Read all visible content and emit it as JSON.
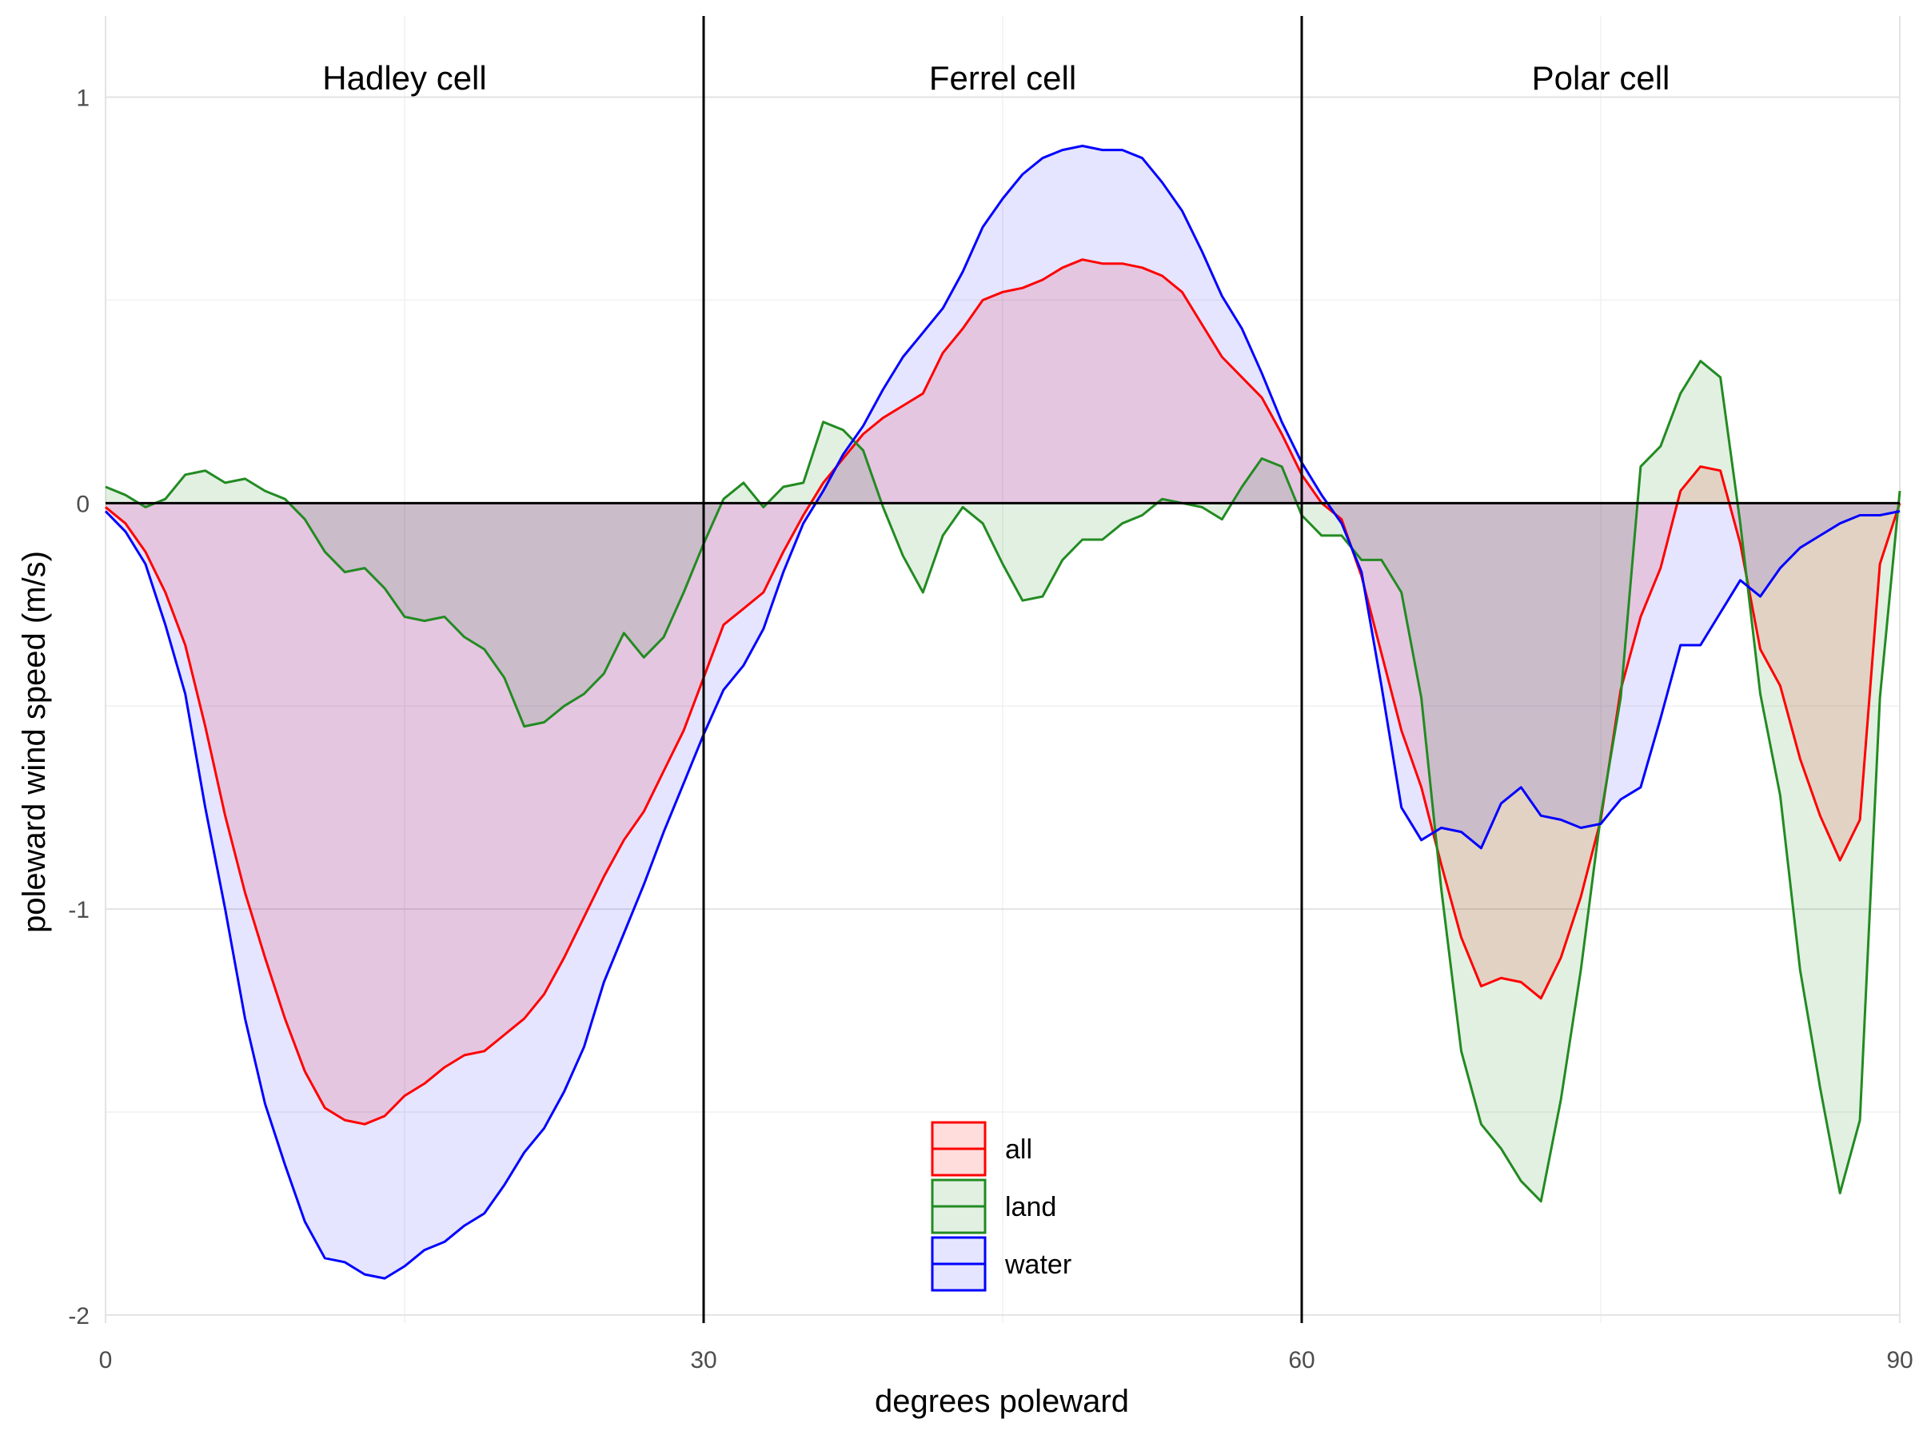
{
  "chart_data": {
    "type": "area",
    "xlabel": "degrees poleward",
    "ylabel": "poleward wind speed (m/s)",
    "xlim": [
      0,
      90
    ],
    "ylim": [
      -2.02,
      1.2
    ],
    "x_ticks": [
      0,
      30,
      60,
      90
    ],
    "x_tick_labels": [
      "0",
      "30",
      "60",
      "90"
    ],
    "y_ticks": [
      -2,
      -1,
      0,
      1
    ],
    "y_tick_labels": [
      "-2",
      "-1",
      "0",
      "1"
    ],
    "y_minor_ticks": [
      -1.5,
      -0.5,
      0.5
    ],
    "x_minor_ticks": [
      15,
      45,
      75
    ],
    "grid": true,
    "legend_position": "bottom-center",
    "reference_lines": {
      "vertical": [
        30,
        60
      ],
      "horizontal": [
        0
      ]
    },
    "regions": [
      {
        "label": "Hadley cell",
        "x_center": 15
      },
      {
        "label": "Ferrel cell",
        "x_center": 45
      },
      {
        "label": "Polar cell",
        "x_center": 75
      }
    ],
    "series": [
      {
        "name": "all",
        "line_color": "#ff0000",
        "fill_color": "#ff000022",
        "points": [
          [
            0,
            -0.01
          ],
          [
            1,
            -0.05
          ],
          [
            2,
            -0.12
          ],
          [
            3,
            -0.22
          ],
          [
            4,
            -0.35
          ],
          [
            5,
            -0.55
          ],
          [
            6,
            -0.77
          ],
          [
            7,
            -0.96
          ],
          [
            8,
            -1.12
          ],
          [
            9,
            -1.27
          ],
          [
            10,
            -1.4
          ],
          [
            11,
            -1.49
          ],
          [
            12,
            -1.52
          ],
          [
            13,
            -1.53
          ],
          [
            14,
            -1.51
          ],
          [
            15,
            -1.46
          ],
          [
            16,
            -1.43
          ],
          [
            17,
            -1.39
          ],
          [
            18,
            -1.36
          ],
          [
            19,
            -1.35
          ],
          [
            20,
            -1.31
          ],
          [
            21,
            -1.27
          ],
          [
            22,
            -1.21
          ],
          [
            23,
            -1.12
          ],
          [
            24,
            -1.02
          ],
          [
            25,
            -0.92
          ],
          [
            26,
            -0.83
          ],
          [
            27,
            -0.76
          ],
          [
            28,
            -0.66
          ],
          [
            29,
            -0.56
          ],
          [
            30,
            -0.43
          ],
          [
            31,
            -0.3
          ],
          [
            32,
            -0.26
          ],
          [
            33,
            -0.22
          ],
          [
            34,
            -0.12
          ],
          [
            35,
            -0.03
          ],
          [
            36,
            0.05
          ],
          [
            37,
            0.11
          ],
          [
            38,
            0.17
          ],
          [
            39,
            0.21
          ],
          [
            40,
            0.24
          ],
          [
            41,
            0.27
          ],
          [
            42,
            0.37
          ],
          [
            43,
            0.43
          ],
          [
            44,
            0.5
          ],
          [
            45,
            0.52
          ],
          [
            46,
            0.53
          ],
          [
            47,
            0.55
          ],
          [
            48,
            0.58
          ],
          [
            49,
            0.6
          ],
          [
            50,
            0.59
          ],
          [
            51,
            0.59
          ],
          [
            52,
            0.58
          ],
          [
            53,
            0.56
          ],
          [
            54,
            0.52
          ],
          [
            55,
            0.44
          ],
          [
            56,
            0.36
          ],
          [
            57,
            0.31
          ],
          [
            58,
            0.26
          ],
          [
            59,
            0.17
          ],
          [
            60,
            0.07
          ],
          [
            61,
            0.0
          ],
          [
            62,
            -0.04
          ],
          [
            63,
            -0.18
          ],
          [
            64,
            -0.37
          ],
          [
            65,
            -0.56
          ],
          [
            66,
            -0.7
          ],
          [
            67,
            -0.89
          ],
          [
            68,
            -1.07
          ],
          [
            69,
            -1.19
          ],
          [
            70,
            -1.17
          ],
          [
            71,
            -1.18
          ],
          [
            72,
            -1.22
          ],
          [
            73,
            -1.12
          ],
          [
            74,
            -0.97
          ],
          [
            75,
            -0.78
          ],
          [
            76,
            -0.46
          ],
          [
            77,
            -0.28
          ],
          [
            78,
            -0.16
          ],
          [
            79,
            0.03
          ],
          [
            80,
            0.09
          ],
          [
            81,
            0.08
          ],
          [
            82,
            -0.1
          ],
          [
            83,
            -0.36
          ],
          [
            84,
            -0.45
          ],
          [
            85,
            -0.63
          ],
          [
            86,
            -0.77
          ],
          [
            87,
            -0.88
          ],
          [
            88,
            -0.78
          ],
          [
            89,
            -0.15
          ],
          [
            90,
            0.0
          ]
        ]
      },
      {
        "name": "land",
        "line_color": "#228b22",
        "fill_color": "#228b2222",
        "points": [
          [
            0,
            0.04
          ],
          [
            1,
            0.02
          ],
          [
            2,
            -0.01
          ],
          [
            3,
            0.01
          ],
          [
            4,
            0.07
          ],
          [
            5,
            0.08
          ],
          [
            6,
            0.05
          ],
          [
            7,
            0.06
          ],
          [
            8,
            0.03
          ],
          [
            9,
            0.01
          ],
          [
            10,
            -0.04
          ],
          [
            11,
            -0.12
          ],
          [
            12,
            -0.17
          ],
          [
            13,
            -0.16
          ],
          [
            14,
            -0.21
          ],
          [
            15,
            -0.28
          ],
          [
            16,
            -0.29
          ],
          [
            17,
            -0.28
          ],
          [
            18,
            -0.33
          ],
          [
            19,
            -0.36
          ],
          [
            20,
            -0.43
          ],
          [
            21,
            -0.55
          ],
          [
            22,
            -0.54
          ],
          [
            23,
            -0.5
          ],
          [
            24,
            -0.47
          ],
          [
            25,
            -0.42
          ],
          [
            26,
            -0.32
          ],
          [
            27,
            -0.38
          ],
          [
            28,
            -0.33
          ],
          [
            29,
            -0.22
          ],
          [
            30,
            -0.1
          ],
          [
            31,
            0.01
          ],
          [
            32,
            0.05
          ],
          [
            33,
            -0.01
          ],
          [
            34,
            0.04
          ],
          [
            35,
            0.05
          ],
          [
            36,
            0.2
          ],
          [
            37,
            0.18
          ],
          [
            38,
            0.13
          ],
          [
            39,
            -0.01
          ],
          [
            40,
            -0.13
          ],
          [
            41,
            -0.22
          ],
          [
            42,
            -0.08
          ],
          [
            43,
            -0.01
          ],
          [
            44,
            -0.05
          ],
          [
            45,
            -0.15
          ],
          [
            46,
            -0.24
          ],
          [
            47,
            -0.23
          ],
          [
            48,
            -0.14
          ],
          [
            49,
            -0.09
          ],
          [
            50,
            -0.09
          ],
          [
            51,
            -0.05
          ],
          [
            52,
            -0.03
          ],
          [
            53,
            0.01
          ],
          [
            54,
            0.0
          ],
          [
            55,
            -0.01
          ],
          [
            56,
            -0.04
          ],
          [
            57,
            0.04
          ],
          [
            58,
            0.11
          ],
          [
            59,
            0.09
          ],
          [
            60,
            -0.03
          ],
          [
            61,
            -0.08
          ],
          [
            62,
            -0.08
          ],
          [
            63,
            -0.14
          ],
          [
            64,
            -0.14
          ],
          [
            65,
            -0.22
          ],
          [
            66,
            -0.48
          ],
          [
            67,
            -0.95
          ],
          [
            68,
            -1.35
          ],
          [
            69,
            -1.53
          ],
          [
            70,
            -1.59
          ],
          [
            71,
            -1.67
          ],
          [
            72,
            -1.72
          ],
          [
            73,
            -1.47
          ],
          [
            74,
            -1.15
          ],
          [
            75,
            -0.77
          ],
          [
            76,
            -0.48
          ],
          [
            77,
            0.09
          ],
          [
            78,
            0.14
          ],
          [
            79,
            0.27
          ],
          [
            80,
            0.35
          ],
          [
            81,
            0.31
          ],
          [
            82,
            -0.05
          ],
          [
            83,
            -0.47
          ],
          [
            84,
            -0.72
          ],
          [
            85,
            -1.15
          ],
          [
            86,
            -1.44
          ],
          [
            87,
            -1.7
          ],
          [
            88,
            -1.52
          ],
          [
            89,
            -0.48
          ],
          [
            90,
            0.03
          ]
        ]
      },
      {
        "name": "water",
        "line_color": "#0000ff",
        "fill_color": "#0000ff1a",
        "points": [
          [
            0,
            -0.02
          ],
          [
            1,
            -0.07
          ],
          [
            2,
            -0.15
          ],
          [
            3,
            -0.3
          ],
          [
            4,
            -0.47
          ],
          [
            5,
            -0.75
          ],
          [
            6,
            -1.0
          ],
          [
            7,
            -1.27
          ],
          [
            8,
            -1.48
          ],
          [
            9,
            -1.63
          ],
          [
            10,
            -1.77
          ],
          [
            11,
            -1.86
          ],
          [
            12,
            -1.87
          ],
          [
            13,
            -1.9
          ],
          [
            14,
            -1.91
          ],
          [
            15,
            -1.88
          ],
          [
            16,
            -1.84
          ],
          [
            17,
            -1.82
          ],
          [
            18,
            -1.78
          ],
          [
            19,
            -1.75
          ],
          [
            20,
            -1.68
          ],
          [
            21,
            -1.6
          ],
          [
            22,
            -1.54
          ],
          [
            23,
            -1.45
          ],
          [
            24,
            -1.34
          ],
          [
            25,
            -1.18
          ],
          [
            26,
            -1.06
          ],
          [
            27,
            -0.94
          ],
          [
            28,
            -0.81
          ],
          [
            29,
            -0.69
          ],
          [
            30,
            -0.57
          ],
          [
            31,
            -0.46
          ],
          [
            32,
            -0.4
          ],
          [
            33,
            -0.31
          ],
          [
            34,
            -0.17
          ],
          [
            35,
            -0.05
          ],
          [
            36,
            0.03
          ],
          [
            37,
            0.12
          ],
          [
            38,
            0.19
          ],
          [
            39,
            0.28
          ],
          [
            40,
            0.36
          ],
          [
            41,
            0.42
          ],
          [
            42,
            0.48
          ],
          [
            43,
            0.57
          ],
          [
            44,
            0.68
          ],
          [
            45,
            0.75
          ],
          [
            46,
            0.81
          ],
          [
            47,
            0.85
          ],
          [
            48,
            0.87
          ],
          [
            49,
            0.88
          ],
          [
            50,
            0.87
          ],
          [
            51,
            0.87
          ],
          [
            52,
            0.85
          ],
          [
            53,
            0.79
          ],
          [
            54,
            0.72
          ],
          [
            55,
            0.62
          ],
          [
            56,
            0.51
          ],
          [
            57,
            0.43
          ],
          [
            58,
            0.32
          ],
          [
            59,
            0.2
          ],
          [
            60,
            0.1
          ],
          [
            61,
            0.02
          ],
          [
            62,
            -0.05
          ],
          [
            63,
            -0.17
          ],
          [
            64,
            -0.45
          ],
          [
            65,
            -0.75
          ],
          [
            66,
            -0.83
          ],
          [
            67,
            -0.8
          ],
          [
            68,
            -0.81
          ],
          [
            69,
            -0.85
          ],
          [
            70,
            -0.74
          ],
          [
            71,
            -0.7
          ],
          [
            72,
            -0.77
          ],
          [
            73,
            -0.78
          ],
          [
            74,
            -0.8
          ],
          [
            75,
            -0.79
          ],
          [
            76,
            -0.73
          ],
          [
            77,
            -0.7
          ],
          [
            78,
            -0.53
          ],
          [
            79,
            -0.35
          ],
          [
            80,
            -0.35
          ],
          [
            81,
            -0.27
          ],
          [
            82,
            -0.19
          ],
          [
            83,
            -0.23
          ],
          [
            84,
            -0.16
          ],
          [
            85,
            -0.11
          ],
          [
            86,
            -0.08
          ],
          [
            87,
            -0.05
          ],
          [
            88,
            -0.03
          ],
          [
            89,
            -0.03
          ],
          [
            90,
            -0.02
          ]
        ]
      }
    ]
  }
}
